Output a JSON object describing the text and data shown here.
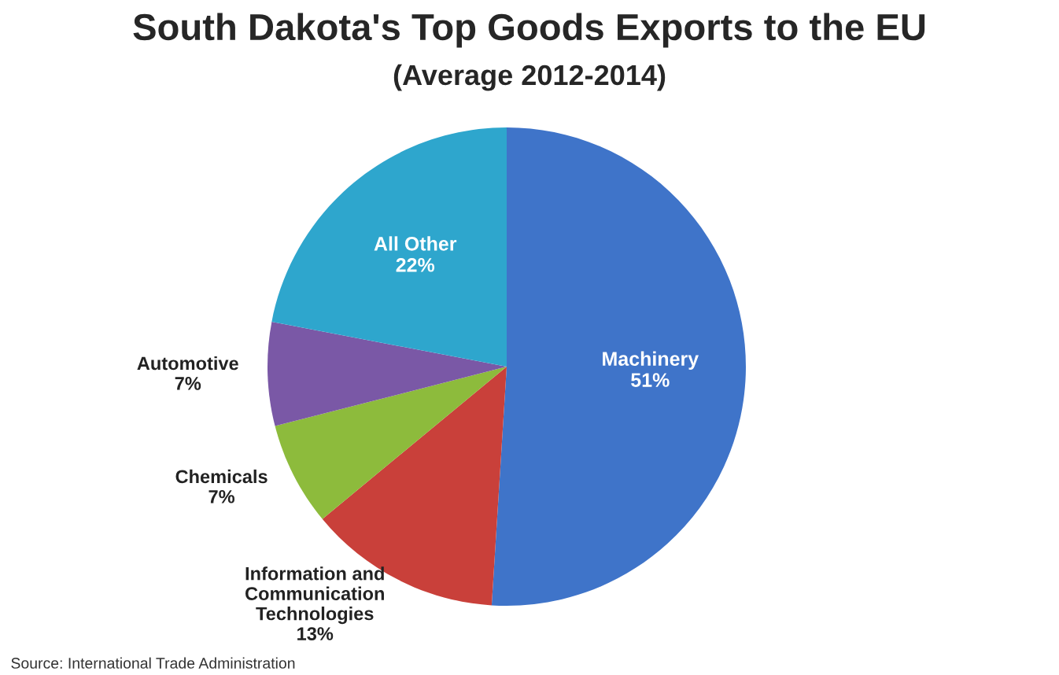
{
  "chart_data": {
    "type": "pie",
    "title": "South Dakota's Top Goods Exports to the EU",
    "subtitle": "(Average 2012-2014)",
    "categories": [
      "Machinery",
      "Information and\nCommunication\nTechnologies",
      "Chemicals",
      "Automotive",
      "All Other"
    ],
    "values": [
      51,
      13,
      7,
      7,
      22
    ],
    "colors": [
      "#3f74c9",
      "#c9403a",
      "#8dbb3c",
      "#7a58a6",
      "#2ea6cd"
    ],
    "value_labels": [
      "51%",
      "13%",
      "7%",
      "7%",
      "22%"
    ],
    "annotations": [
      "Source: International Trade Administration"
    ]
  }
}
